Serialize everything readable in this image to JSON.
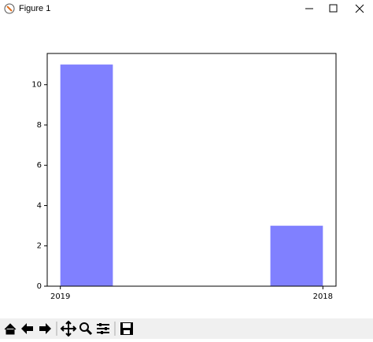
{
  "window": {
    "title": "Figure 1"
  },
  "chart_data": {
    "type": "histogram",
    "bins": [
      0,
      0.2,
      0.4,
      0.6,
      0.8,
      1.0
    ],
    "values": [
      11,
      0,
      0,
      0,
      3
    ],
    "color": "#8080ff",
    "xlim": [
      -0.05,
      1.05
    ],
    "xticks": [
      {
        "value": 0,
        "label": "2019"
      },
      {
        "value": 1,
        "label": "2018"
      }
    ],
    "ylim": [
      0,
      11.55
    ],
    "yticks": [
      0,
      2,
      4,
      6,
      8,
      10
    ],
    "grid": false
  }
}
